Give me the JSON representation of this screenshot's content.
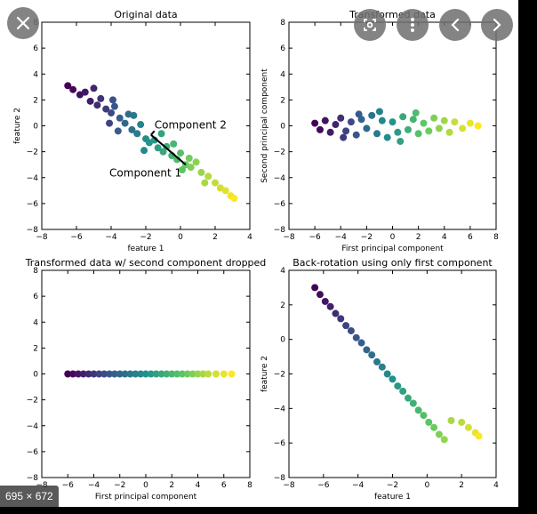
{
  "viewer": {
    "size_badge": "695 × 672",
    "icons": {
      "close": "close-icon",
      "lens": "lens-icon",
      "more": "more-vert-icon",
      "prev": "chevron-left-icon",
      "next": "chevron-right-icon"
    }
  },
  "chart_data": [
    {
      "type": "scatter",
      "title": "Original data",
      "xlabel": "feature 1",
      "ylabel": "feature 2",
      "xlim": [
        -8,
        4
      ],
      "ylim": [
        -8,
        8
      ],
      "xticks": [
        "−8",
        "−6",
        "−4",
        "−2",
        "0",
        "2",
        "4"
      ],
      "yticks": [
        "−8",
        "−6",
        "−4",
        "−2",
        "0",
        "2",
        "4",
        "6",
        "8"
      ],
      "annotations": [
        "Component 2",
        "Component 1"
      ],
      "colormap": [
        "#440154",
        "#3b528b",
        "#21918c",
        "#5ec962",
        "#fde725"
      ],
      "points": [
        [
          -6.5,
          3.1
        ],
        [
          -6.2,
          2.8
        ],
        [
          -5.8,
          2.4
        ],
        [
          -5.5,
          2.6
        ],
        [
          -5.2,
          1.9
        ],
        [
          -4.8,
          1.6
        ],
        [
          -4.6,
          2.1
        ],
        [
          -4.3,
          1.3
        ],
        [
          -4.0,
          1.0
        ],
        [
          -3.8,
          1.5
        ],
        [
          -3.5,
          0.6
        ],
        [
          -3.2,
          0.2
        ],
        [
          -3.0,
          0.9
        ],
        [
          -2.8,
          -0.3
        ],
        [
          -2.5,
          -0.6
        ],
        [
          -2.3,
          0.1
        ],
        [
          -2.0,
          -1.0
        ],
        [
          -1.8,
          -1.3
        ],
        [
          -1.5,
          -1.1
        ],
        [
          -1.3,
          -1.7
        ],
        [
          -1.0,
          -2.0
        ],
        [
          -0.8,
          -1.6
        ],
        [
          -0.5,
          -2.3
        ],
        [
          -0.2,
          -2.6
        ],
        [
          0.0,
          -2.1
        ],
        [
          0.3,
          -3.0
        ],
        [
          0.6,
          -3.2
        ],
        [
          0.9,
          -2.8
        ],
        [
          1.2,
          -3.6
        ],
        [
          1.6,
          -3.9
        ],
        [
          2.0,
          -4.4
        ],
        [
          2.3,
          -4.8
        ],
        [
          2.6,
          -5.0
        ],
        [
          2.9,
          -5.4
        ],
        [
          3.1,
          -5.6
        ],
        [
          -3.6,
          -0.4
        ],
        [
          -2.7,
          0.8
        ],
        [
          -1.1,
          -0.6
        ],
        [
          -0.4,
          -1.4
        ],
        [
          0.5,
          -2.5
        ],
        [
          -5.0,
          2.9
        ],
        [
          -4.1,
          0.2
        ],
        [
          1.4,
          -4.4
        ],
        [
          -2.1,
          -1.9
        ],
        [
          -3.9,
          2.0
        ],
        [
          0.1,
          -3.4
        ]
      ]
    },
    {
      "type": "scatter",
      "title": "Transformed data",
      "xlabel": "First principal component",
      "ylabel": "Second principal component",
      "xlim": [
        -8,
        8
      ],
      "ylim": [
        -8,
        8
      ],
      "xticks": [
        "−8",
        "−6",
        "−4",
        "−2",
        "0",
        "2",
        "4",
        "6",
        "8"
      ],
      "yticks": [
        "−8",
        "−6",
        "−4",
        "−2",
        "0",
        "2",
        "4",
        "6",
        "8"
      ],
      "points": [
        [
          -6.0,
          0.2
        ],
        [
          -5.6,
          -0.3
        ],
        [
          -5.2,
          0.4
        ],
        [
          -4.8,
          -0.5
        ],
        [
          -4.4,
          0.1
        ],
        [
          -4.0,
          0.6
        ],
        [
          -3.6,
          -0.4
        ],
        [
          -3.2,
          0.3
        ],
        [
          -2.8,
          -0.7
        ],
        [
          -2.4,
          0.5
        ],
        [
          -2.0,
          -0.2
        ],
        [
          -1.6,
          0.8
        ],
        [
          -1.2,
          -0.6
        ],
        [
          -0.8,
          0.4
        ],
        [
          -0.4,
          -0.9
        ],
        [
          0.0,
          0.3
        ],
        [
          0.4,
          -0.5
        ],
        [
          0.8,
          0.7
        ],
        [
          1.2,
          -0.3
        ],
        [
          1.6,
          0.5
        ],
        [
          2.0,
          -0.6
        ],
        [
          2.4,
          0.2
        ],
        [
          2.8,
          -0.4
        ],
        [
          3.2,
          0.6
        ],
        [
          3.6,
          -0.2
        ],
        [
          4.0,
          0.4
        ],
        [
          4.4,
          -0.5
        ],
        [
          4.8,
          0.3
        ],
        [
          5.4,
          -0.2
        ],
        [
          6.0,
          0.2
        ],
        [
          6.6,
          0.0
        ],
        [
          -1.0,
          1.1
        ],
        [
          0.6,
          -1.2
        ],
        [
          -2.6,
          0.9
        ],
        [
          1.8,
          1.0
        ],
        [
          -3.8,
          -0.9
        ]
      ]
    },
    {
      "type": "scatter",
      "title": "Transformed data w/ second component dropped",
      "xlabel": "First principal component",
      "ylabel": "",
      "xlim": [
        -8,
        8
      ],
      "ylim": [
        -8,
        8
      ],
      "xticks": [
        "−8",
        "−6",
        "−4",
        "−2",
        "0",
        "2",
        "4",
        "6",
        "8"
      ],
      "yticks": [
        "−8",
        "−6",
        "−4",
        "−2",
        "0",
        "2",
        "4",
        "6",
        "8"
      ],
      "points": [
        [
          -6.0,
          0
        ],
        [
          -5.6,
          0
        ],
        [
          -5.2,
          0
        ],
        [
          -4.8,
          0
        ],
        [
          -4.4,
          0
        ],
        [
          -4.0,
          0
        ],
        [
          -3.6,
          0
        ],
        [
          -3.2,
          0
        ],
        [
          -2.8,
          0
        ],
        [
          -2.4,
          0
        ],
        [
          -2.0,
          0
        ],
        [
          -1.6,
          0
        ],
        [
          -1.2,
          0
        ],
        [
          -0.8,
          0
        ],
        [
          -0.4,
          0
        ],
        [
          0.0,
          0
        ],
        [
          0.4,
          0
        ],
        [
          0.8,
          0
        ],
        [
          1.2,
          0
        ],
        [
          1.6,
          0
        ],
        [
          2.0,
          0
        ],
        [
          2.4,
          0
        ],
        [
          2.8,
          0
        ],
        [
          3.2,
          0
        ],
        [
          3.6,
          0
        ],
        [
          4.0,
          0
        ],
        [
          4.4,
          0
        ],
        [
          4.8,
          0
        ],
        [
          5.4,
          0
        ],
        [
          6.0,
          0
        ],
        [
          6.6,
          0
        ]
      ]
    },
    {
      "type": "scatter",
      "title": "Back-rotation using only first component",
      "xlabel": "feature 1",
      "ylabel": "feature 2",
      "xlim": [
        -8,
        4
      ],
      "ylim": [
        -8,
        4
      ],
      "xticks": [
        "−8",
        "−6",
        "−4",
        "−2",
        "0",
        "2",
        "4"
      ],
      "yticks": [
        "−8",
        "−6",
        "−4",
        "−2",
        "0",
        "2",
        "4"
      ],
      "points": [
        [
          -6.5,
          3.0
        ],
        [
          -6.2,
          2.6
        ],
        [
          -5.9,
          2.2
        ],
        [
          -5.6,
          1.9
        ],
        [
          -5.3,
          1.5
        ],
        [
          -5.0,
          1.2
        ],
        [
          -4.7,
          0.8
        ],
        [
          -4.4,
          0.5
        ],
        [
          -4.1,
          0.1
        ],
        [
          -3.8,
          -0.2
        ],
        [
          -3.5,
          -0.6
        ],
        [
          -3.2,
          -0.9
        ],
        [
          -2.9,
          -1.3
        ],
        [
          -2.6,
          -1.6
        ],
        [
          -2.3,
          -2.0
        ],
        [
          -2.0,
          -2.3
        ],
        [
          -1.7,
          -2.7
        ],
        [
          -1.4,
          -3.0
        ],
        [
          -1.1,
          -3.4
        ],
        [
          -0.8,
          -3.7
        ],
        [
          -0.5,
          -4.1
        ],
        [
          -0.2,
          -4.4
        ],
        [
          0.1,
          -4.8
        ],
        [
          0.4,
          -5.1
        ],
        [
          0.7,
          -5.5
        ],
        [
          1.0,
          -5.8
        ],
        [
          1.4,
          -4.7
        ],
        [
          2.0,
          -4.8
        ],
        [
          2.4,
          -5.1
        ],
        [
          2.8,
          -5.4
        ],
        [
          3.0,
          -5.6
        ]
      ]
    }
  ]
}
